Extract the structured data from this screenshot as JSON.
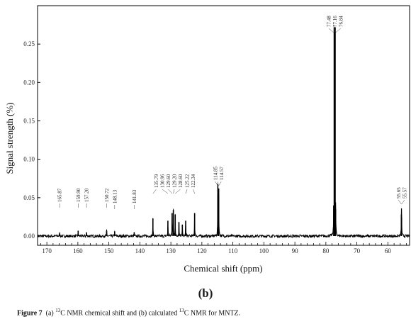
{
  "chart_data": {
    "type": "line",
    "xlabel": "Chemical shift (ppm)",
    "ylabel": "Signal strength (%)",
    "xlim": [
      173,
      53
    ],
    "ylim": [
      -0.012,
      0.3
    ],
    "x_ticks": [
      170,
      160,
      150,
      140,
      130,
      120,
      110,
      100,
      90,
      80,
      70,
      60
    ],
    "y_ticks": [
      0.0,
      0.05,
      0.1,
      0.15,
      0.2,
      0.25
    ],
    "y_tick_labels": [
      "0.00",
      "0.05",
      "0.10",
      "0.15",
      "0.20",
      "0.25"
    ],
    "grid": false,
    "peaks": [
      {
        "ppm": 165.87,
        "height": 0.004
      },
      {
        "ppm": 159.9,
        "height": 0.007
      },
      {
        "ppm": 157.2,
        "height": 0.005
      },
      {
        "ppm": 150.72,
        "height": 0.007
      },
      {
        "ppm": 148.13,
        "height": 0.006
      },
      {
        "ppm": 141.83,
        "height": 0.005
      },
      {
        "ppm": 135.79,
        "height": 0.023
      },
      {
        "ppm": 130.96,
        "height": 0.02
      },
      {
        "ppm": 129.6,
        "height": 0.03
      },
      {
        "ppm": 129.2,
        "height": 0.034
      },
      {
        "ppm": 128.6,
        "height": 0.028
      },
      {
        "ppm": 127.4,
        "height": 0.018
      },
      {
        "ppm": 126.3,
        "height": 0.015
      },
      {
        "ppm": 125.22,
        "height": 0.02
      },
      {
        "ppm": 122.34,
        "height": 0.03
      },
      {
        "ppm": 114.85,
        "height": 0.068
      },
      {
        "ppm": 114.57,
        "height": 0.062
      },
      {
        "ppm": 77.48,
        "height": 0.04
      },
      {
        "ppm": 77.16,
        "height": 0.272
      },
      {
        "ppm": 76.84,
        "height": 0.035
      },
      {
        "ppm": 55.65,
        "height": 0.028
      },
      {
        "ppm": 55.57,
        "height": 0.024
      }
    ],
    "peak_labels": [
      {
        "text": "165.87",
        "ppm": 165.87
      },
      {
        "text": "159.90",
        "ppm": 159.9
      },
      {
        "text": "157.20",
        "ppm": 157.2
      },
      {
        "text": "150.72",
        "ppm": 150.72
      },
      {
        "text": "148.13",
        "ppm": 148.13
      },
      {
        "text": "141.83",
        "ppm": 141.83
      },
      {
        "text": "135.79",
        "ppm": 135.79
      },
      {
        "text": "130.96",
        "ppm": 130.96
      },
      {
        "text": "129.60",
        "ppm": 129.6
      },
      {
        "text": "129.20",
        "ppm": 129.2
      },
      {
        "text": "128.60",
        "ppm": 128.6
      },
      {
        "text": "125.22",
        "ppm": 125.22
      },
      {
        "text": "122.34",
        "ppm": 122.34
      },
      {
        "text": "114.85",
        "ppm": 114.85
      },
      {
        "text": "114.57",
        "ppm": 114.57
      },
      {
        "text": "77.48",
        "ppm": 77.48
      },
      {
        "text": "77.16",
        "ppm": 77.16
      },
      {
        "text": "76.84",
        "ppm": 76.84
      },
      {
        "text": "55.65",
        "ppm": 55.65
      },
      {
        "text": "55.57",
        "ppm": 55.57
      }
    ],
    "line_color": "#000000"
  },
  "panel_label": "(b)",
  "caption": {
    "figure": "Figure 7",
    "part1": "(a) ",
    "iso1": "13",
    "part2": "C NMR chemical shift and (b) calculated ",
    "iso2": "13",
    "part3": "C NMR for MNTZ."
  }
}
